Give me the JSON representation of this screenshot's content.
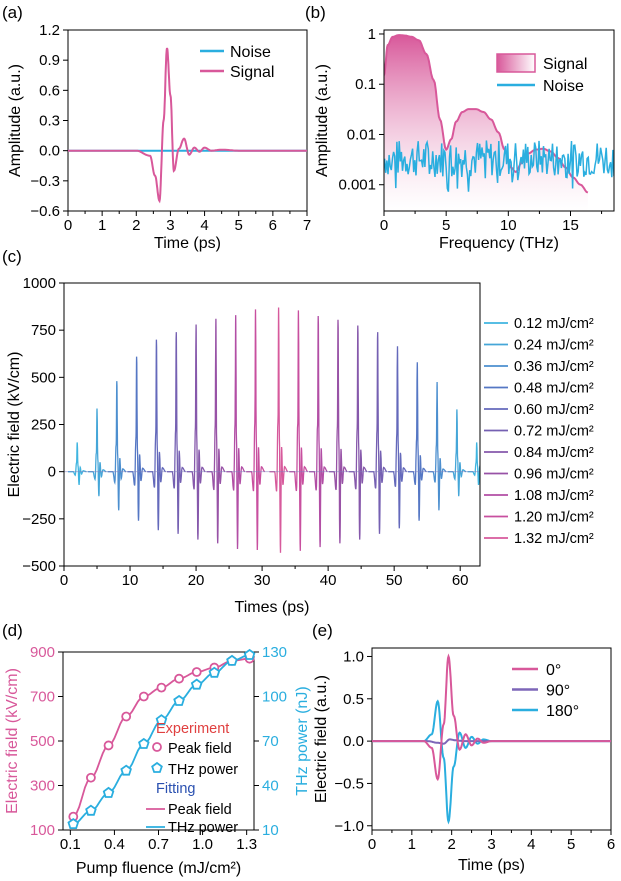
{
  "colors": {
    "signal": "#d8589a",
    "noise": "#2aaedf",
    "red_text": "#e04040",
    "blue_text": "#2a50b0"
  },
  "panels": {
    "a": {
      "label": "(a)",
      "xlabel": "Time (ps)",
      "ylabel": "Amplitude (a.u.)",
      "xticks": [
        "0",
        "1",
        "2",
        "3",
        "4",
        "5",
        "6",
        "7"
      ],
      "yticks": [
        "1.2",
        "0.9",
        "0.6",
        "0.3",
        "0.0",
        "−0.3",
        "−0.6"
      ],
      "legend": [
        "Noise",
        "Signal"
      ]
    },
    "b": {
      "label": "(b)",
      "xlabel": "Frequency (THz)",
      "ylabel": "Amplitude (a.u.)",
      "xticks": [
        "0",
        "5",
        "10",
        "15"
      ],
      "yticks": [
        "1",
        "0.1",
        "0.01",
        "0.001"
      ],
      "legend": [
        "Signal",
        "Noise"
      ]
    },
    "c": {
      "label": "(c)",
      "xlabel": "Times (ps)",
      "ylabel": "Electric field (kV/cm)",
      "xticks": [
        "0",
        "10",
        "20",
        "30",
        "40",
        "50",
        "60"
      ],
      "yticks": [
        "1000",
        "750",
        "500",
        "250",
        "0",
        "−250",
        "−500"
      ],
      "legend": [
        "0.12 mJ/cm²",
        "0.24 mJ/cm²",
        "0.36 mJ/cm²",
        "0.48 mJ/cm²",
        "0.60 mJ/cm²",
        "0.72 mJ/cm²",
        "0.84 mJ/cm²",
        "0.96 mJ/cm²",
        "1.08 mJ/cm²",
        "1.20 mJ/cm²",
        "1.32 mJ/cm²"
      ]
    },
    "d": {
      "label": "(d)",
      "xlabel": "Pump fluence (mJ/cm²)",
      "ylabel_left": "Electric field (kV/cm)",
      "ylabel_right": "THz power (nJ)",
      "xticks": [
        "0.1",
        "0.4",
        "0.7",
        "1.0",
        "1.3"
      ],
      "yticks_left": [
        "900",
        "700",
        "500",
        "300",
        "100"
      ],
      "yticks_right": [
        "130",
        "100",
        "70",
        "40",
        "10"
      ],
      "legend_experiment": "Experiment",
      "legend_peak": "Peak field",
      "legend_power": "THz power",
      "legend_fitting": "Fitting",
      "legend_fit_peak": "Peak field",
      "legend_fit_power": "THz power"
    },
    "e": {
      "label": "(e)",
      "xlabel": "Time (ps)",
      "ylabel": "Electric field (a.u.)",
      "xticks": [
        "0",
        "1",
        "2",
        "3",
        "4",
        "5",
        "6"
      ],
      "yticks": [
        "1.0",
        "0.5",
        "0.0",
        "−0.5",
        "−1.0"
      ],
      "legend": [
        "0°",
        "90°",
        "180°"
      ]
    }
  },
  "chart_data": [
    {
      "type": "line",
      "panel": "a",
      "xlim": [
        0,
        7
      ],
      "ylim": [
        -0.6,
        1.2
      ],
      "series": [
        {
          "name": "Noise",
          "description": "flat baseline",
          "x": [
            0,
            7
          ],
          "y": [
            0,
            0
          ]
        },
        {
          "name": "Signal",
          "x": [
            0,
            2.0,
            2.4,
            2.55,
            2.68,
            2.8,
            2.9,
            3.0,
            3.1,
            3.25,
            3.4,
            3.55,
            3.7,
            3.85,
            4.0,
            4.2,
            4.5,
            5.0,
            6.0,
            7.0
          ],
          "y": [
            0,
            0,
            -0.05,
            -0.25,
            -0.5,
            0.3,
            1.02,
            0.55,
            -0.2,
            0.02,
            0.12,
            -0.04,
            0.03,
            -0.01,
            0.03,
            0.0,
            0.01,
            0.0,
            0.0,
            0.0
          ]
        }
      ]
    },
    {
      "type": "area",
      "panel": "b",
      "yscale": "log",
      "xlim": [
        0,
        18.5
      ],
      "ylim": [
        0.0003,
        1.2
      ],
      "series": [
        {
          "name": "Signal",
          "x": [
            0,
            0.3,
            0.7,
            1.2,
            1.7,
            2.2,
            2.8,
            3.4,
            4.0,
            4.5,
            5.0,
            5.4,
            5.8,
            6.3,
            6.8,
            7.4,
            8.0,
            8.6,
            9.2,
            9.7,
            10.2,
            10.6,
            11.1,
            11.6,
            12.2,
            12.8,
            13.4,
            14.0,
            14.6,
            15.2,
            15.8,
            16.4
          ],
          "y": [
            0.15,
            0.6,
            0.88,
            0.95,
            0.93,
            0.88,
            0.75,
            0.4,
            0.12,
            0.02,
            0.005,
            0.008,
            0.018,
            0.028,
            0.032,
            0.032,
            0.028,
            0.02,
            0.011,
            0.005,
            0.0022,
            0.0018,
            0.0028,
            0.0042,
            0.005,
            0.0052,
            0.0046,
            0.0034,
            0.0022,
            0.0014,
            0.001,
            0.0007
          ]
        },
        {
          "name": "Noise",
          "description": "noise floor ~0.001–0.005 across 0–18.5 THz"
        }
      ]
    },
    {
      "type": "line",
      "panel": "c",
      "xlim": [
        0,
        63
      ],
      "ylim": [
        -500,
        1000
      ],
      "series": [
        {
          "name": "0.12 mJ/cm²",
          "peaks_x": [
            2.0,
            62.5
          ],
          "peak_max": [
            155,
            155
          ],
          "peak_min": [
            -70,
            -70
          ]
        },
        {
          "name": "0.24 mJ/cm²",
          "peaks_x": [
            5.0,
            59.5
          ],
          "peak_max": [
            335,
            330
          ],
          "peak_min": [
            -130,
            -130
          ]
        },
        {
          "name": "0.36 mJ/cm²",
          "peaks_x": [
            8.0,
            56.5
          ],
          "peak_max": [
            480,
            475
          ],
          "peak_min": [
            -205,
            -205
          ]
        },
        {
          "name": "0.48 mJ/cm²",
          "peaks_x": [
            11.0,
            53.5
          ],
          "peak_max": [
            610,
            580
          ],
          "peak_min": [
            -260,
            -260
          ]
        },
        {
          "name": "0.60 mJ/cm²",
          "peaks_x": [
            14.0,
            50.5
          ],
          "peak_max": [
            700,
            665
          ],
          "peak_min": [
            -310,
            -300
          ]
        },
        {
          "name": "0.72 mJ/cm²",
          "peaks_x": [
            17.0,
            47.5
          ],
          "peak_max": [
            740,
            740
          ],
          "peak_min": [
            -330,
            -330
          ]
        },
        {
          "name": "0.84 mJ/cm²",
          "peaks_x": [
            20.0,
            44.5
          ],
          "peak_max": [
            780,
            775
          ],
          "peak_min": [
            -360,
            -360
          ]
        },
        {
          "name": "0.96 mJ/cm²",
          "peaks_x": [
            23.0,
            41.5
          ],
          "peak_max": [
            810,
            805
          ],
          "peak_min": [
            -380,
            -380
          ]
        },
        {
          "name": "1.08 mJ/cm²",
          "peaks_x": [
            26.0,
            38.5
          ],
          "peak_max": [
            830,
            825
          ],
          "peak_min": [
            -410,
            -400
          ]
        },
        {
          "name": "1.20 mJ/cm²",
          "peaks_x": [
            29.0,
            35.5
          ],
          "peak_max": [
            860,
            855
          ],
          "peak_min": [
            -415,
            -420
          ]
        },
        {
          "name": "1.32 mJ/cm²",
          "peaks_x": [
            32.5
          ],
          "peak_max": [
            870
          ],
          "peak_min": [
            -430
          ]
        }
      ]
    },
    {
      "type": "scatter",
      "panel": "d",
      "xlim": [
        0.05,
        1.35
      ],
      "ylim_left": [
        100,
        900
      ],
      "ylim_right": [
        10,
        130
      ],
      "series": [
        {
          "name": "Peak field",
          "axis": "left",
          "x": [
            0.12,
            0.24,
            0.36,
            0.48,
            0.6,
            0.72,
            0.84,
            0.96,
            1.08,
            1.2,
            1.32
          ],
          "y": [
            160,
            335,
            480,
            610,
            700,
            740,
            780,
            810,
            830,
            860,
            870
          ]
        },
        {
          "name": "THz power",
          "axis": "right",
          "x": [
            0.12,
            0.24,
            0.36,
            0.48,
            0.6,
            0.72,
            0.84,
            0.96,
            1.08,
            1.2,
            1.32
          ],
          "y": [
            14,
            23,
            35,
            50,
            68,
            84,
            97,
            108,
            116,
            124,
            128
          ]
        }
      ]
    },
    {
      "type": "line",
      "panel": "e",
      "xlim": [
        0,
        6
      ],
      "ylim": [
        -1.05,
        1.1
      ],
      "series": [
        {
          "name": "0°",
          "x": [
            0,
            1.3,
            1.5,
            1.65,
            1.8,
            1.92,
            2.05,
            2.2,
            2.35,
            2.5,
            2.65,
            2.8,
            3.0,
            6
          ],
          "y": [
            0,
            0,
            -0.08,
            -0.45,
            0.2,
            1.0,
            0.3,
            -0.1,
            0.08,
            -0.05,
            0.03,
            -0.02,
            0.0,
            0.0
          ]
        },
        {
          "name": "90°",
          "x": [
            0,
            1.4,
            1.65,
            1.8,
            1.95,
            2.1,
            2.3,
            6
          ],
          "y": [
            0,
            0,
            -0.02,
            -0.03,
            0.02,
            0.01,
            0.0,
            0.0
          ]
        },
        {
          "name": "180°",
          "x": [
            0,
            1.3,
            1.5,
            1.65,
            1.8,
            1.92,
            2.05,
            2.2,
            2.35,
            2.5,
            2.65,
            2.8,
            3.0,
            6
          ],
          "y": [
            0,
            0,
            0.08,
            0.47,
            -0.2,
            -0.95,
            -0.3,
            0.1,
            -0.08,
            0.05,
            -0.03,
            0.02,
            0.0,
            0.0
          ]
        }
      ]
    }
  ]
}
